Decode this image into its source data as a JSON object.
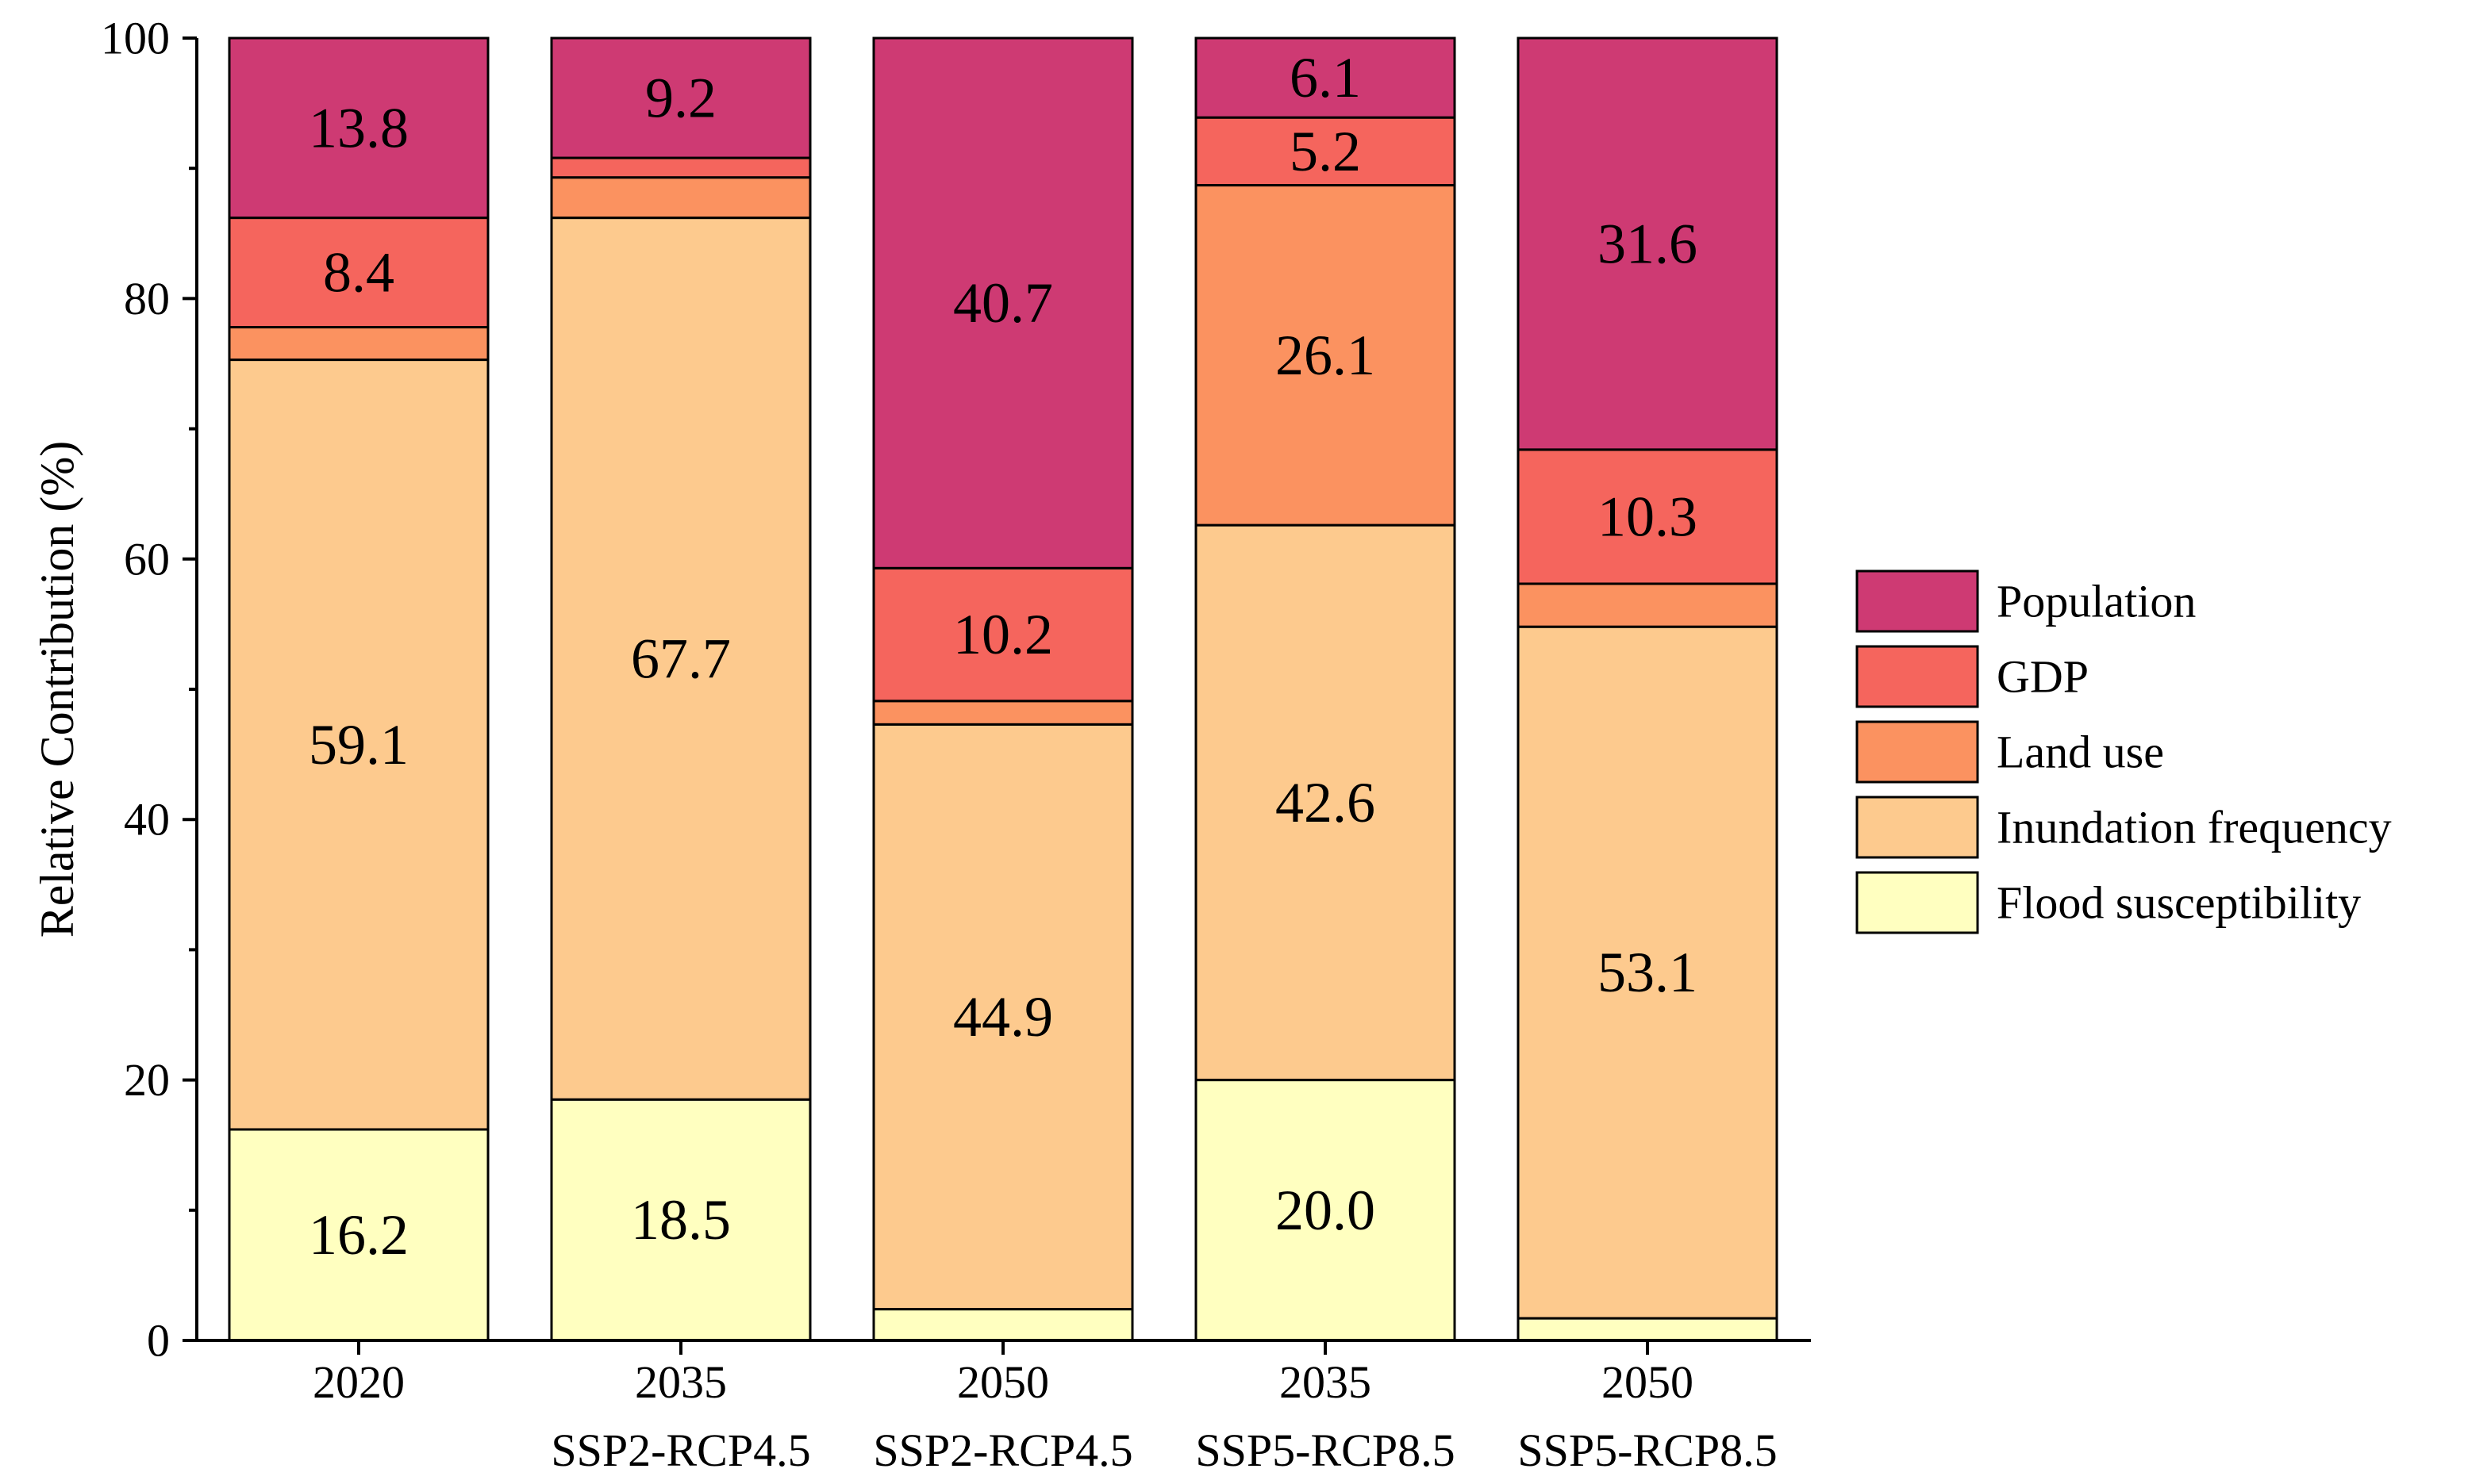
{
  "chart_data": {
    "type": "bar",
    "stacked": true,
    "title": "",
    "xlabel": "",
    "ylabel": "Relative Contribution (%)",
    "ylim": [
      0,
      100
    ],
    "yticks": [
      0,
      20,
      40,
      60,
      80,
      100
    ],
    "grid": false,
    "legend_position": "right",
    "categories": [
      {
        "year": "2020",
        "scenario": ""
      },
      {
        "year": "2035",
        "scenario": "SSP2-RCP4.5"
      },
      {
        "year": "2050",
        "scenario": "SSP2-RCP4.5"
      },
      {
        "year": "2035",
        "scenario": "SSP5-RCP8.5"
      },
      {
        "year": "2050",
        "scenario": "SSP5-RCP8.5"
      }
    ],
    "series": [
      {
        "name": "Flood susceptibility",
        "color": "#FFFFC0",
        "values": [
          16.2,
          18.5,
          2.4,
          20.0,
          1.7
        ],
        "labels": [
          "16.2",
          "18.5",
          "",
          "20.0",
          ""
        ]
      },
      {
        "name": "Inundation frequency",
        "color": "#FDCA8E",
        "values": [
          59.1,
          67.7,
          44.9,
          42.6,
          53.1
        ],
        "labels": [
          "59.1",
          "67.7",
          "44.9",
          "42.6",
          "53.1"
        ]
      },
      {
        "name": "Land use",
        "color": "#FB9260",
        "values": [
          2.5,
          3.1,
          1.8,
          26.1,
          3.3
        ],
        "labels": [
          "",
          "",
          "",
          "26.1",
          ""
        ]
      },
      {
        "name": "GDP",
        "color": "#F5655D",
        "values": [
          8.4,
          1.5,
          10.2,
          5.2,
          10.3
        ],
        "labels": [
          "8.4",
          "",
          "10.2",
          "5.2",
          "10.3"
        ]
      },
      {
        "name": "Population",
        "color": "#CE3A73",
        "values": [
          13.8,
          9.2,
          40.7,
          6.1,
          31.6
        ],
        "labels": [
          "13.8",
          "9.2",
          "40.7",
          "6.1",
          "31.6"
        ]
      }
    ]
  }
}
